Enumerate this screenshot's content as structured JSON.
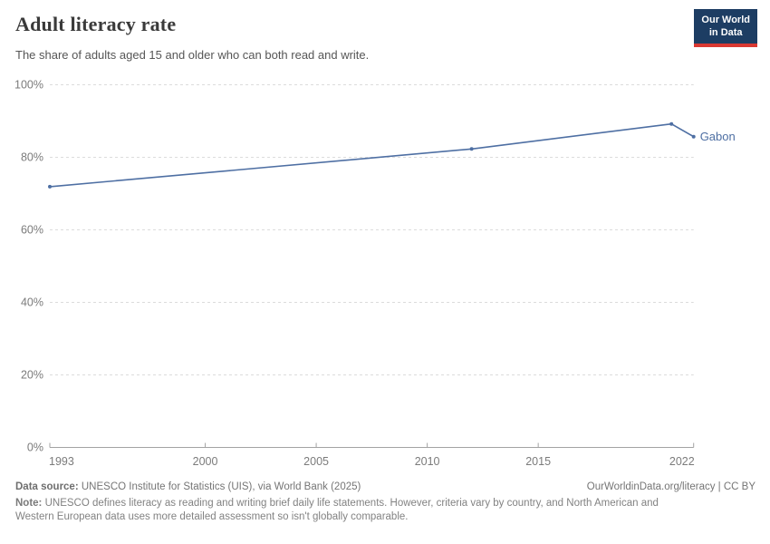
{
  "header": {
    "title": "Adult literacy rate",
    "subtitle": "The share of adults aged 15 and older who can both read and write.",
    "logo": {
      "line1": "Our World",
      "line2": "in Data",
      "bg_color": "#1d3d63",
      "accent_color": "#d93832"
    }
  },
  "chart_data": {
    "type": "line",
    "title": "Adult literacy rate",
    "xlabel": "",
    "ylabel": "",
    "xlim": [
      1993,
      2022
    ],
    "ylim": [
      0,
      100
    ],
    "grid": "dashed-horizontal",
    "x_ticks": [
      1993,
      2000,
      2005,
      2010,
      2015,
      2022
    ],
    "x_tick_labels": [
      "1993",
      "2000",
      "2005",
      "2010",
      "2015",
      "2022"
    ],
    "y_ticks": [
      0,
      20,
      40,
      60,
      80,
      100
    ],
    "y_tick_labels": [
      "0%",
      "20%",
      "40%",
      "60%",
      "80%",
      "100%"
    ],
    "series": [
      {
        "name": "Gabon",
        "color": "#4e6fa3",
        "x": [
          1993,
          2012,
          2021,
          2022
        ],
        "y": [
          71.9,
          82.3,
          89.2,
          85.7
        ]
      }
    ],
    "legend_position": "end-of-line-label",
    "colors": {
      "gridline": "#dcdcdc",
      "axis": "#a3a3a3",
      "tick_label": "#7b7b7b"
    }
  },
  "footer": {
    "datasource_label": "Data source:",
    "datasource_text": " UNESCO Institute for Statistics (UIS), via World Bank (2025)",
    "link_text": "OurWorldinData.org/literacy | CC BY",
    "note_label": "Note:",
    "note_line1": " UNESCO defines literacy as reading and writing brief daily life statements. However, criteria vary by country, and North American and",
    "note_line2": "Western European data uses more detailed assessment so isn't globally comparable."
  }
}
